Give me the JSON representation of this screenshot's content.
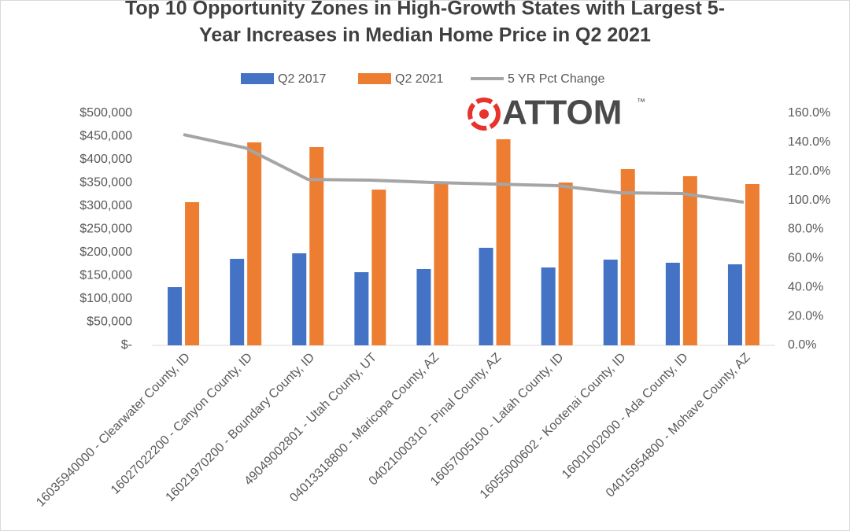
{
  "chart_data": {
    "type": "bar-line",
    "title": [
      "Top 10 Opportunity Zones in High-Growth States with Largest 5-",
      "Year Increases in Median Home Price in Q2 2021"
    ],
    "logo": "ATTOM",
    "logo_mark": "™",
    "categories": [
      "16035940000 - Clearwater County, ID",
      "16027022200 - Canyon County, ID",
      "16021970200 - Boundary County, ID",
      "49049002801 - Utah County, UT",
      "04013318800 - Maricopa County, AZ",
      "04021000310 - Pinal County, AZ",
      "16057005100 - Latah County, ID",
      "16055000602 - Kootenai County, ID",
      "16001002000 - Ada County, ID",
      "04015954800 - Mohave County, AZ"
    ],
    "series": [
      {
        "name": "Q2 2017",
        "type": "bar",
        "color": "#4472c4",
        "values": [
          125400,
          186400,
          198300,
          157600,
          164400,
          210200,
          167800,
          184700,
          178000,
          174600
        ]
      },
      {
        "name": "Q2 2021",
        "type": "bar",
        "color": "#ed7d31",
        "values": [
          308500,
          437300,
          427100,
          335600,
          352500,
          444000,
          350800,
          379700,
          364400,
          347500
        ]
      },
      {
        "name": "5 YR Pct Change",
        "type": "line",
        "axis": "y2",
        "color": "#a5a5a5",
        "values": [
          145.3,
          136.1,
          114.4,
          113.9,
          112.3,
          111.2,
          110.1,
          105.2,
          104.7,
          98.7
        ]
      }
    ],
    "ylim": [
      0,
      500000
    ],
    "yticks": [
      {
        "value": 0,
        "label": "$-"
      },
      {
        "value": 50000,
        "label": "$50,000"
      },
      {
        "value": 100000,
        "label": "$100,000"
      },
      {
        "value": 150000,
        "label": "$150,000"
      },
      {
        "value": 200000,
        "label": "$200,000"
      },
      {
        "value": 250000,
        "label": "$250,000"
      },
      {
        "value": 300000,
        "label": "$300,000"
      },
      {
        "value": 350000,
        "label": "$350,000"
      },
      {
        "value": 400000,
        "label": "$400,000"
      },
      {
        "value": 450000,
        "label": "$450,000"
      },
      {
        "value": 500000,
        "label": "$500,000"
      }
    ],
    "y2lim": [
      0,
      160
    ],
    "y2ticks": [
      {
        "value": 0,
        "label": "0.0%"
      },
      {
        "value": 20,
        "label": "20.0%"
      },
      {
        "value": 40,
        "label": "40.0%"
      },
      {
        "value": 60,
        "label": "60.0%"
      },
      {
        "value": 80,
        "label": "80.0%"
      },
      {
        "value": 100,
        "label": "100.0%"
      },
      {
        "value": 120,
        "label": "120.0%"
      },
      {
        "value": 140,
        "label": "140.0%"
      },
      {
        "value": 160,
        "label": "160.0%"
      }
    ],
    "legend": "top",
    "grid": false
  }
}
